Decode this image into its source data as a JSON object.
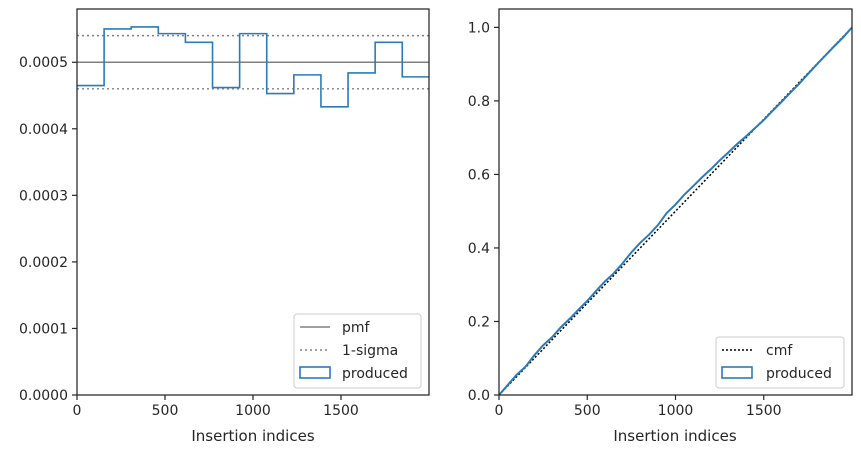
{
  "colors": {
    "produced": "#2b7bb9",
    "pmf": "#808080",
    "sigma": "#808080",
    "cmf": "#000000",
    "axes": "#262626"
  },
  "chart_data": [
    {
      "type": "histogram",
      "xlabel": "Insertion indices",
      "ylabel": "",
      "xlim": [
        0,
        2000
      ],
      "ylim": [
        0,
        0.00058
      ],
      "x_ticks": [
        "0",
        "500",
        "1000",
        "1500"
      ],
      "x_tick_values": [
        0,
        500,
        1000,
        1500
      ],
      "y_ticks": [
        "0.0000",
        "0.0001",
        "0.0002",
        "0.0003",
        "0.0004",
        "0.0005"
      ],
      "y_tick_values": [
        0,
        0.0001,
        0.0002,
        0.0003,
        0.0004,
        0.0005
      ],
      "bin_edges": [
        0,
        154,
        308,
        462,
        616,
        770,
        924,
        1078,
        1232,
        1386,
        1540,
        1694,
        1848,
        2000
      ],
      "produced": [
        0.000465,
        0.00055,
        0.000553,
        0.000543,
        0.00053,
        0.000462,
        0.000543,
        0.000453,
        0.000481,
        0.000433,
        0.000484,
        0.00053,
        0.000478
      ],
      "pmf": 0.0005,
      "sigma_upper": 0.00054,
      "sigma_lower": 0.00046,
      "legend": [
        "pmf",
        "1-sigma",
        "produced"
      ],
      "legend_position": "lower right"
    },
    {
      "type": "line",
      "xlabel": "Insertion indices",
      "ylabel": "",
      "xlim": [
        0,
        2000
      ],
      "ylim": [
        0,
        1.05
      ],
      "x_ticks": [
        "0",
        "500",
        "1000",
        "1500"
      ],
      "x_tick_values": [
        0,
        500,
        1000,
        1500
      ],
      "y_ticks": [
        "0.0",
        "0.2",
        "0.4",
        "0.6",
        "0.8",
        "1.0"
      ],
      "y_tick_values": [
        0,
        0.2,
        0.4,
        0.6,
        0.8,
        1.0
      ],
      "cmf": {
        "x": [
          0,
          2000
        ],
        "y": [
          0,
          1.0
        ]
      },
      "produced": {
        "x": [
          0,
          100,
          150,
          200,
          250,
          300,
          350,
          400,
          450,
          500,
          550,
          600,
          650,
          700,
          750,
          800,
          850,
          900,
          950,
          1000,
          1050,
          1100,
          1150,
          1200,
          1250,
          1300,
          1350,
          1400,
          1450,
          1500,
          1550,
          1600,
          1650,
          1700,
          1750,
          1800,
          1850,
          1900,
          1950,
          2000
        ],
        "y": [
          0,
          0.055,
          0.077,
          0.108,
          0.135,
          0.157,
          0.184,
          0.207,
          0.232,
          0.256,
          0.283,
          0.309,
          0.331,
          0.358,
          0.388,
          0.414,
          0.436,
          0.462,
          0.495,
          0.518,
          0.545,
          0.568,
          0.592,
          0.614,
          0.638,
          0.66,
          0.683,
          0.704,
          0.726,
          0.748,
          0.773,
          0.797,
          0.822,
          0.846,
          0.873,
          0.899,
          0.924,
          0.949,
          0.973,
          1.0
        ]
      },
      "legend": [
        "cmf",
        "produced"
      ],
      "legend_position": "lower right"
    }
  ]
}
